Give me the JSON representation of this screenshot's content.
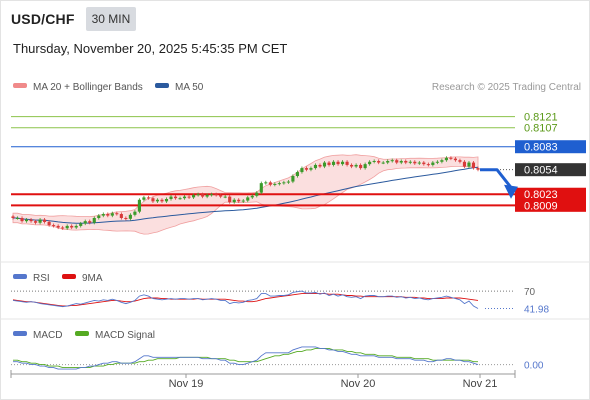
{
  "header": {
    "symbol": "USD/CHF",
    "timeframe": "30 MIN",
    "timestamp": "Thursday, November 20, 2025 5:45:35 PM CET"
  },
  "legends": {
    "main": [
      {
        "label": "MA 20 + Bollinger Bands",
        "color": "#f08a8a"
      },
      {
        "label": "MA 50",
        "color": "#2b5a9e"
      }
    ],
    "rsi": [
      {
        "label": "RSI",
        "color": "#5577cc"
      },
      {
        "label": "9MA",
        "color": "#dd1111"
      }
    ],
    "macd": [
      {
        "label": "MACD",
        "color": "#5577cc"
      },
      {
        "label": "MACD Signal",
        "color": "#55aa22"
      }
    ],
    "credit": "Research © 2025 Trading Central"
  },
  "colors": {
    "up": "#3a9a2a",
    "down": "#d83a3a",
    "target_green": "#8bc34a",
    "pivot_blue": "#1f5fd0",
    "support_red": "#e01010",
    "last_price": "#333333",
    "arrow": "#1f5fd0"
  },
  "chart_data": {
    "type": "candlestick",
    "ylim": [
      0.7945,
      0.8142
    ],
    "x_tick_labels": [
      "Nov 19",
      "Nov 20",
      "Nov 21"
    ],
    "levels": [
      {
        "value": 0.8121,
        "label": "0.8121",
        "kind": "target"
      },
      {
        "value": 0.8107,
        "label": "0.8107",
        "kind": "target"
      },
      {
        "value": 0.8083,
        "label": "0.8083",
        "kind": "pivot"
      },
      {
        "value": 0.8023,
        "label": "0.8023",
        "kind": "support"
      },
      {
        "value": 0.8009,
        "label": "0.8009",
        "kind": "support"
      }
    ],
    "last_price": {
      "value": 0.8054,
      "label": "0.8054"
    },
    "forecast_path": [
      0.8054,
      0.8054,
      0.803
    ],
    "close": [
      0.7993,
      0.7993,
      0.7989,
      0.7991,
      0.7989,
      0.7987,
      0.7991,
      0.7988,
      0.7984,
      0.7983,
      0.7981,
      0.798,
      0.7983,
      0.7981,
      0.7983,
      0.7986,
      0.7989,
      0.7987,
      0.7993,
      0.7996,
      0.7998,
      0.7996,
      0.7999,
      0.7998,
      0.7993,
      0.7992,
      0.7997,
      0.8001,
      0.8016,
      0.8019,
      0.8018,
      0.8014,
      0.8016,
      0.8014,
      0.8017,
      0.802,
      0.8018,
      0.8018,
      0.802,
      0.8019,
      0.8022,
      0.8023,
      0.802,
      0.8022,
      0.8023,
      0.8022,
      0.802,
      0.802,
      0.8013,
      0.8016,
      0.8014,
      0.8015,
      0.8019,
      0.8021,
      0.8025,
      0.8037,
      0.8038,
      0.8035,
      0.8036,
      0.8037,
      0.8038,
      0.8039,
      0.8046,
      0.8051,
      0.8056,
      0.8054,
      0.8056,
      0.806,
      0.8058,
      0.8063,
      0.806,
      0.8064,
      0.8061,
      0.8064,
      0.806,
      0.8058,
      0.806,
      0.8056,
      0.8061,
      0.8064,
      0.8065,
      0.8063,
      0.8063,
      0.8065,
      0.8066,
      0.8063,
      0.8065,
      0.8063,
      0.8064,
      0.8062,
      0.8063,
      0.8061,
      0.806,
      0.8063,
      0.8064,
      0.8066,
      0.8069,
      0.8068,
      0.8066,
      0.8064,
      0.8058,
      0.8063,
      0.8056,
      0.8054
    ],
    "rsi": {
      "reference": [
        70
      ],
      "value": 41.98,
      "rsi": [
        55,
        54,
        53,
        52,
        53,
        52,
        50,
        49,
        48,
        47,
        46,
        45,
        46,
        48,
        50,
        49,
        51,
        53,
        55,
        54,
        56,
        55,
        57,
        55,
        52,
        50,
        52,
        55,
        62,
        64,
        62,
        58,
        57,
        56,
        57,
        58,
        57,
        58,
        58,
        57,
        58,
        58,
        56,
        57,
        58,
        57,
        55,
        55,
        50,
        52,
        51,
        52,
        55,
        56,
        58,
        66,
        66,
        62,
        62,
        63,
        63,
        64,
        68,
        69,
        70,
        67,
        67,
        68,
        65,
        67,
        63,
        65,
        62,
        64,
        61,
        60,
        61,
        58,
        62,
        63,
        63,
        61,
        61,
        62,
        62,
        60,
        61,
        59,
        60,
        58,
        59,
        57,
        56,
        58,
        59,
        60,
        62,
        60,
        58,
        56,
        50,
        54,
        46,
        41.98
      ],
      "ma": [
        56,
        55,
        54,
        53,
        53,
        52,
        51,
        50,
        49,
        48,
        47,
        46,
        46,
        47,
        47,
        48,
        49,
        50,
        51,
        52,
        53,
        54,
        55,
        55,
        54,
        53,
        53,
        54,
        56,
        58,
        59,
        59,
        59,
        58,
        58,
        57,
        57,
        57,
        57,
        57,
        57,
        58,
        57,
        57,
        57,
        57,
        57,
        57,
        56,
        55,
        54,
        54,
        53,
        53,
        54,
        56,
        58,
        59,
        60,
        61,
        62,
        63,
        64,
        65,
        66,
        66,
        66,
        66,
        66,
        66,
        65,
        65,
        65,
        64,
        63,
        63,
        62,
        62,
        61,
        61,
        61,
        61,
        61,
        61,
        61,
        61,
        61,
        60,
        60,
        60,
        59,
        59,
        58,
        58,
        58,
        58,
        59,
        59,
        59,
        59,
        58,
        57,
        56,
        55
      ]
    },
    "macd": {
      "reference": [
        0.0
      ],
      "value_label": "0.00",
      "macd": [
        0.0002,
        0.0002,
        0.0001,
        0.0001,
        0.0,
        0.0,
        -0.0001,
        -0.0001,
        -0.0002,
        -0.0002,
        -0.0003,
        -0.0003,
        -0.0003,
        -0.0003,
        -0.0003,
        -0.0002,
        -0.0002,
        -0.0001,
        -0.0001,
        0.0,
        0.0001,
        0.0001,
        0.0002,
        0.0002,
        0.0001,
        0.0001,
        0.0001,
        0.0002,
        0.0004,
        0.0006,
        0.0006,
        0.0005,
        0.0005,
        0.0005,
        0.0005,
        0.0005,
        0.0005,
        0.0005,
        0.0005,
        0.0005,
        0.0005,
        0.0005,
        0.0004,
        0.0004,
        0.0004,
        0.0004,
        0.0003,
        0.0003,
        0.0001,
        0.0001,
        0.0,
        0.0,
        0.0001,
        0.0002,
        0.0003,
        0.0006,
        0.0008,
        0.0008,
        0.0008,
        0.0008,
        0.0008,
        0.0008,
        0.001,
        0.0011,
        0.0012,
        0.0012,
        0.0012,
        0.0012,
        0.0011,
        0.0011,
        0.001,
        0.001,
        0.0009,
        0.0009,
        0.0008,
        0.0007,
        0.0007,
        0.0006,
        0.0006,
        0.0006,
        0.0006,
        0.0005,
        0.0005,
        0.0005,
        0.0005,
        0.0004,
        0.0004,
        0.0004,
        0.0004,
        0.0003,
        0.0003,
        0.0003,
        0.0002,
        0.0002,
        0.0003,
        0.0003,
        0.0004,
        0.0004,
        0.0003,
        0.0003,
        0.0002,
        0.0002,
        0.0001,
        0.0
      ],
      "signal": [
        0.0003,
        0.0003,
        0.0002,
        0.0002,
        0.0001,
        0.0001,
        0.0,
        0.0,
        -0.0001,
        -0.0001,
        -0.0001,
        -0.0002,
        -0.0002,
        -0.0002,
        -0.0002,
        -0.0002,
        -0.0002,
        -0.0002,
        -0.0001,
        -0.0001,
        -0.0001,
        0.0,
        0.0,
        0.0001,
        0.0001,
        0.0001,
        0.0001,
        0.0001,
        0.0002,
        0.0002,
        0.0003,
        0.0003,
        0.0004,
        0.0004,
        0.0004,
        0.0004,
        0.0004,
        0.0005,
        0.0005,
        0.0005,
        0.0005,
        0.0005,
        0.0005,
        0.0005,
        0.0004,
        0.0004,
        0.0004,
        0.0004,
        0.0003,
        0.0003,
        0.0002,
        0.0002,
        0.0002,
        0.0002,
        0.0002,
        0.0003,
        0.0004,
        0.0005,
        0.0006,
        0.0006,
        0.0007,
        0.0007,
        0.0008,
        0.0009,
        0.0009,
        0.001,
        0.001,
        0.0011,
        0.0011,
        0.0011,
        0.0011,
        0.001,
        0.001,
        0.001,
        0.0009,
        0.0009,
        0.0008,
        0.0008,
        0.0007,
        0.0007,
        0.0007,
        0.0006,
        0.0006,
        0.0006,
        0.0006,
        0.0005,
        0.0005,
        0.0005,
        0.0005,
        0.0004,
        0.0004,
        0.0004,
        0.0004,
        0.0003,
        0.0003,
        0.0003,
        0.0003,
        0.0003,
        0.0003,
        0.0003,
        0.0003,
        0.0003,
        0.0002,
        0.0002
      ]
    }
  }
}
